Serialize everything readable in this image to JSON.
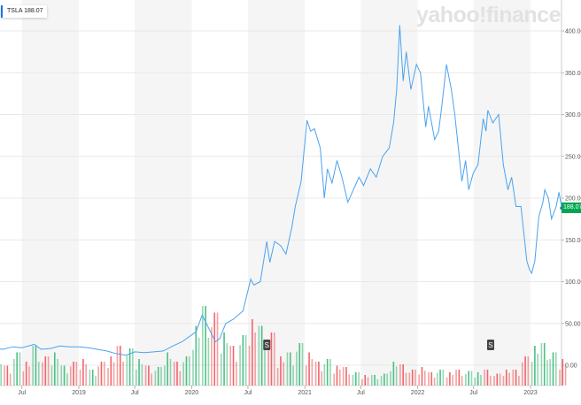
{
  "header": {
    "ticker": "TSLA",
    "price": "188.07"
  },
  "watermark": "yahoo!finance",
  "colors": {
    "line": "#4aa3f0",
    "up": "#3cb878",
    "down": "#f0555a",
    "current": "#00a651",
    "shade": "#f5f5f5"
  },
  "chart_data": {
    "type": "line",
    "title": "",
    "xlabel": "",
    "ylabel": "",
    "ylim": [
      -25,
      420
    ],
    "yticks": [
      "0.00",
      "50.00",
      "100.00",
      "150.00",
      "200.00",
      "250.00",
      "300.00",
      "350.00",
      "400.00"
    ],
    "xticks": [
      {
        "label": "Jul",
        "date": "2018-07-01"
      },
      {
        "label": "2019",
        "date": "2019-01-01"
      },
      {
        "label": "Jul",
        "date": "2019-07-01"
      },
      {
        "label": "2020",
        "date": "2020-01-01"
      },
      {
        "label": "Jul",
        "date": "2020-07-01"
      },
      {
        "label": "2021",
        "date": "2021-01-01"
      },
      {
        "label": "Jul",
        "date": "2021-07-01"
      },
      {
        "label": "2022",
        "date": "2022-01-01"
      },
      {
        "label": "Jul",
        "date": "2022-07-01"
      },
      {
        "label": "2023",
        "date": "2023-01-01"
      }
    ],
    "current_value": "188.07",
    "series": [
      {
        "values": [
          [
            "2018-04-01",
            20
          ],
          [
            "2018-05-01",
            19
          ],
          [
            "2018-06-01",
            22
          ],
          [
            "2018-07-01",
            21
          ],
          [
            "2018-08-10",
            25
          ],
          [
            "2018-09-01",
            19
          ],
          [
            "2018-10-01",
            20
          ],
          [
            "2018-11-01",
            23
          ],
          [
            "2018-12-01",
            22
          ],
          [
            "2019-01-01",
            22
          ],
          [
            "2019-02-01",
            21
          ],
          [
            "2019-03-01",
            19
          ],
          [
            "2019-04-01",
            17
          ],
          [
            "2019-05-01",
            14
          ],
          [
            "2019-06-03",
            12
          ],
          [
            "2019-07-01",
            16
          ],
          [
            "2019-08-01",
            15
          ],
          [
            "2019-09-01",
            16
          ],
          [
            "2019-10-01",
            17
          ],
          [
            "2019-11-01",
            23
          ],
          [
            "2019-12-01",
            28
          ],
          [
            "2020-01-15",
            40
          ],
          [
            "2020-02-04",
            60
          ],
          [
            "2020-02-20",
            48
          ],
          [
            "2020-03-18",
            28
          ],
          [
            "2020-04-01",
            32
          ],
          [
            "2020-04-20",
            50
          ],
          [
            "2020-05-15",
            55
          ],
          [
            "2020-06-15",
            65
          ],
          [
            "2020-07-10",
            103
          ],
          [
            "2020-07-20",
            96
          ],
          [
            "2020-08-10",
            100
          ],
          [
            "2020-08-31",
            148
          ],
          [
            "2020-09-10",
            123
          ],
          [
            "2020-09-25",
            148
          ],
          [
            "2020-10-15",
            143
          ],
          [
            "2020-11-01",
            133
          ],
          [
            "2020-11-20",
            165
          ],
          [
            "2020-12-01",
            190
          ],
          [
            "2020-12-20",
            220
          ],
          [
            "2021-01-08",
            293
          ],
          [
            "2021-01-20",
            280
          ],
          [
            "2021-02-01",
            283
          ],
          [
            "2021-02-20",
            260
          ],
          [
            "2021-03-05",
            200
          ],
          [
            "2021-03-15",
            235
          ],
          [
            "2021-03-30",
            218
          ],
          [
            "2021-04-15",
            245
          ],
          [
            "2021-05-01",
            225
          ],
          [
            "2021-05-20",
            195
          ],
          [
            "2021-06-01",
            205
          ],
          [
            "2021-06-25",
            225
          ],
          [
            "2021-07-10",
            215
          ],
          [
            "2021-08-01",
            235
          ],
          [
            "2021-08-20",
            225
          ],
          [
            "2021-09-10",
            250
          ],
          [
            "2021-10-01",
            260
          ],
          [
            "2021-10-15",
            290
          ],
          [
            "2021-10-25",
            330
          ],
          [
            "2021-11-04",
            407
          ],
          [
            "2021-11-15",
            340
          ],
          [
            "2021-11-25",
            375
          ],
          [
            "2021-12-10",
            330
          ],
          [
            "2021-12-28",
            360
          ],
          [
            "2022-01-10",
            350
          ],
          [
            "2022-01-27",
            285
          ],
          [
            "2022-02-05",
            310
          ],
          [
            "2022-02-25",
            270
          ],
          [
            "2022-03-10",
            280
          ],
          [
            "2022-03-20",
            310
          ],
          [
            "2022-04-04",
            360
          ],
          [
            "2022-04-20",
            330
          ],
          [
            "2022-05-01",
            300
          ],
          [
            "2022-05-24",
            220
          ],
          [
            "2022-06-05",
            245
          ],
          [
            "2022-06-15",
            210
          ],
          [
            "2022-06-30",
            230
          ],
          [
            "2022-07-15",
            240
          ],
          [
            "2022-08-01",
            295
          ],
          [
            "2022-08-10",
            280
          ],
          [
            "2022-08-16",
            305
          ],
          [
            "2022-09-01",
            290
          ],
          [
            "2022-09-20",
            300
          ],
          [
            "2022-10-05",
            240
          ],
          [
            "2022-10-20",
            210
          ],
          [
            "2022-11-01",
            225
          ],
          [
            "2022-11-15",
            190
          ],
          [
            "2022-12-01",
            190
          ],
          [
            "2022-12-20",
            125
          ],
          [
            "2022-12-28",
            115
          ],
          [
            "2023-01-05",
            110
          ],
          [
            "2023-01-15",
            125
          ],
          [
            "2023-01-28",
            178
          ],
          [
            "2023-02-10",
            195
          ],
          [
            "2023-02-16",
            210
          ],
          [
            "2023-02-28",
            200
          ],
          [
            "2023-03-10",
            175
          ],
          [
            "2023-03-25",
            190
          ],
          [
            "2023-04-03",
            207
          ],
          [
            "2023-04-12",
            188.07
          ]
        ]
      }
    ],
    "volume": {
      "start": "2018-04",
      "values": [
        20,
        15,
        25,
        18,
        30,
        22,
        25,
        15,
        18,
        20,
        12,
        18,
        22,
        30,
        28,
        20,
        15,
        14,
        25,
        18,
        22,
        45,
        60,
        55,
        40,
        30,
        38,
        50,
        45,
        40,
        22,
        25,
        32,
        25,
        18,
        20,
        15,
        14,
        10,
        8,
        8,
        9,
        18,
        16,
        12,
        14,
        10,
        12,
        10,
        12,
        11,
        10,
        12,
        9,
        12,
        12,
        22,
        30,
        32,
        25,
        20
      ],
      "direction": [
        "u",
        "d",
        "u",
        "d",
        "u",
        "d",
        "u",
        "u",
        "d",
        "d",
        "u",
        "d",
        "d",
        "d",
        "u",
        "u",
        "d",
        "u",
        "u",
        "d",
        "u",
        "u",
        "u",
        "d",
        "u",
        "d",
        "u",
        "d",
        "u",
        "d",
        "d",
        "u",
        "u",
        "d",
        "d",
        "u",
        "d",
        "d",
        "u",
        "d",
        "u",
        "u",
        "u",
        "d",
        "d",
        "d",
        "d",
        "u",
        "d",
        "d",
        "u",
        "u",
        "d",
        "d",
        "d",
        "d",
        "d",
        "u",
        "u",
        "u",
        "d"
      ]
    },
    "events": [
      {
        "label": "S",
        "date": "2020-08-31"
      },
      {
        "label": "S",
        "date": "2022-08-25"
      }
    ],
    "grid": true,
    "legend": "none"
  }
}
